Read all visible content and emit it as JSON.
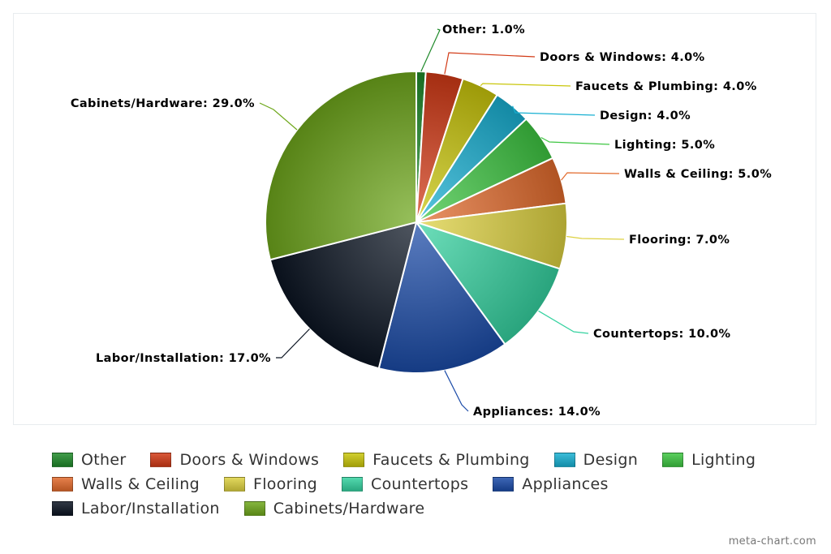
{
  "chart_data": {
    "type": "pie",
    "slices": [
      {
        "label": "Other",
        "value": 1.0,
        "color": "#1f8a2a"
      },
      {
        "label": "Doors & Windows",
        "value": 4.0,
        "color": "#d23a16"
      },
      {
        "label": "Faucets & Plumbing",
        "value": 4.0,
        "color": "#c9c60a"
      },
      {
        "label": "Design",
        "value": 4.0,
        "color": "#18b0d2"
      },
      {
        "label": "Lighting",
        "value": 5.0,
        "color": "#3ec642"
      },
      {
        "label": "Walls & Ceiling",
        "value": 5.0,
        "color": "#e26a2c"
      },
      {
        "label": "Flooring",
        "value": 7.0,
        "color": "#ddd140"
      },
      {
        "label": "Countertops",
        "value": 10.0,
        "color": "#35d2a0"
      },
      {
        "label": "Appliances",
        "value": 14.0,
        "color": "#1b4ba8"
      },
      {
        "label": "Labor/Installation",
        "value": 17.0,
        "color": "#0b1422"
      },
      {
        "label": "Cabinets/Hardware",
        "value": 29.0,
        "color": "#6fa81c"
      }
    ],
    "data_labels": [
      "Other: 1.0%",
      "Doors & Windows: 4.0%",
      "Faucets & Plumbing: 4.0%",
      "Design: 4.0%",
      "Lighting: 5.0%",
      "Walls & Ceiling: 5.0%",
      "Flooring: 7.0%",
      "Countertops: 10.0%",
      "Appliances: 14.0%",
      "Labor/Installation: 17.0%",
      "Cabinets/Hardware: 29.0%"
    ],
    "legend_position": "bottom"
  },
  "watermark": "meta-chart.com"
}
